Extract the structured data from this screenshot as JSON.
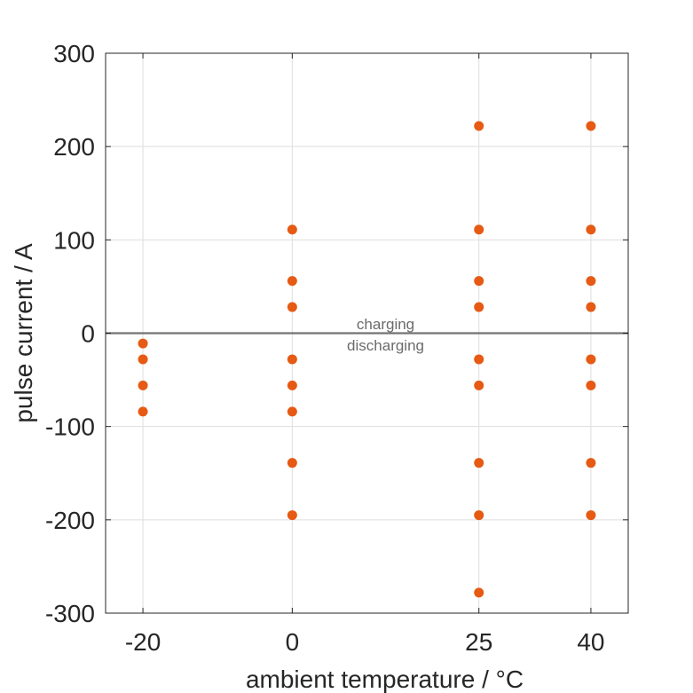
{
  "chart_data": {
    "type": "scatter",
    "xlabel": "ambient temperature / °C",
    "ylabel": "pulse current / A",
    "xticks": [
      -20,
      0,
      25,
      40
    ],
    "yticks": [
      -300,
      -200,
      -100,
      0,
      100,
      200,
      300
    ],
    "xlim": [
      -25,
      45
    ],
    "ylim": [
      -300,
      300
    ],
    "grid": true,
    "marker_color": "#e65a14",
    "reference_line": {
      "y": 0,
      "color": "#737373"
    },
    "annotations": [
      {
        "text": "charging",
        "x": 12.5,
        "y": 10
      },
      {
        "text": "discharging",
        "x": 12.5,
        "y": -13
      }
    ],
    "points": [
      {
        "x": -20,
        "y": -11
      },
      {
        "x": -20,
        "y": -28
      },
      {
        "x": -20,
        "y": -56
      },
      {
        "x": -20,
        "y": -84
      },
      {
        "x": 0,
        "y": 111
      },
      {
        "x": 0,
        "y": 56
      },
      {
        "x": 0,
        "y": 28
      },
      {
        "x": 0,
        "y": -28
      },
      {
        "x": 0,
        "y": -56
      },
      {
        "x": 0,
        "y": -84
      },
      {
        "x": 0,
        "y": -139
      },
      {
        "x": 0,
        "y": -195
      },
      {
        "x": 25,
        "y": 222
      },
      {
        "x": 25,
        "y": 111
      },
      {
        "x": 25,
        "y": 56
      },
      {
        "x": 25,
        "y": 28
      },
      {
        "x": 25,
        "y": -28
      },
      {
        "x": 25,
        "y": -56
      },
      {
        "x": 25,
        "y": -139
      },
      {
        "x": 25,
        "y": -195
      },
      {
        "x": 25,
        "y": -278
      },
      {
        "x": 40,
        "y": 222
      },
      {
        "x": 40,
        "y": 111
      },
      {
        "x": 40,
        "y": 56
      },
      {
        "x": 40,
        "y": 28
      },
      {
        "x": 40,
        "y": -28
      },
      {
        "x": 40,
        "y": -56
      },
      {
        "x": 40,
        "y": -139
      },
      {
        "x": 40,
        "y": -195
      }
    ]
  }
}
